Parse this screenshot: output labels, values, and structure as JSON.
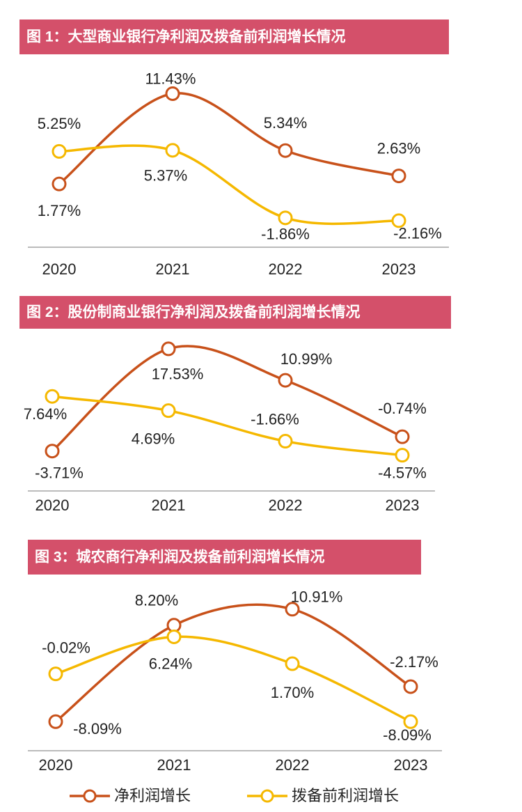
{
  "chart_data": [
    {
      "type": "line",
      "title": "图 1：大型商业银行净利润及拨备前利润增长情况",
      "categories": [
        "2020",
        "2021",
        "2022",
        "2023"
      ],
      "ylim": [
        -5,
        14
      ],
      "series": [
        {
          "name": "净利润增长",
          "color": "#c8511a",
          "values": [
            1.77,
            11.43,
            5.34,
            2.63
          ],
          "value_labels": [
            "1.77%",
            "11.43%",
            "5.34%",
            "2.63%"
          ]
        },
        {
          "name": "拨备前利润增长",
          "color": "#f5b800",
          "values": [
            5.25,
            5.37,
            -1.86,
            -2.16
          ],
          "value_labels": [
            "5.25%",
            "5.37%",
            "-1.86%",
            "-2.16%"
          ]
        }
      ]
    },
    {
      "type": "line",
      "title": "图 2：股份制商业银行净利润及拨备前利润增长情况",
      "categories": [
        "2020",
        "2021",
        "2022",
        "2023"
      ],
      "ylim": [
        -12,
        22
      ],
      "series": [
        {
          "color": "#c8511a",
          "values": [
            -3.71,
            17.53,
            10.99,
            -0.74
          ],
          "value_labels": [
            "-3.71%",
            "17.53%",
            "10.99%",
            "-0.74%"
          ]
        },
        {
          "color": "#f5b800",
          "values": [
            7.64,
            4.69,
            -1.66,
            -4.57
          ],
          "value_labels": [
            "7.64%",
            "4.69%",
            "-1.66%",
            "-4.57%"
          ]
        }
      ]
    },
    {
      "type": "line",
      "title": "图 3：城农商行净利润及拨备前利润增长情况",
      "categories": [
        "2020",
        "2021",
        "2022",
        "2023"
      ],
      "ylim": [
        -13,
        15
      ],
      "series": [
        {
          "color": "#c8511a",
          "values": [
            -8.09,
            8.2,
            10.91,
            -2.17
          ],
          "value_labels": [
            "-8.09%",
            "8.20%",
            "10.91%",
            "-2.17%"
          ]
        },
        {
          "color": "#f5b800",
          "values": [
            -0.02,
            6.24,
            1.7,
            -8.09
          ],
          "value_labels": [
            "-0.02%",
            "6.24%",
            "1.70%",
            "-8.09%"
          ]
        }
      ]
    }
  ]
}
